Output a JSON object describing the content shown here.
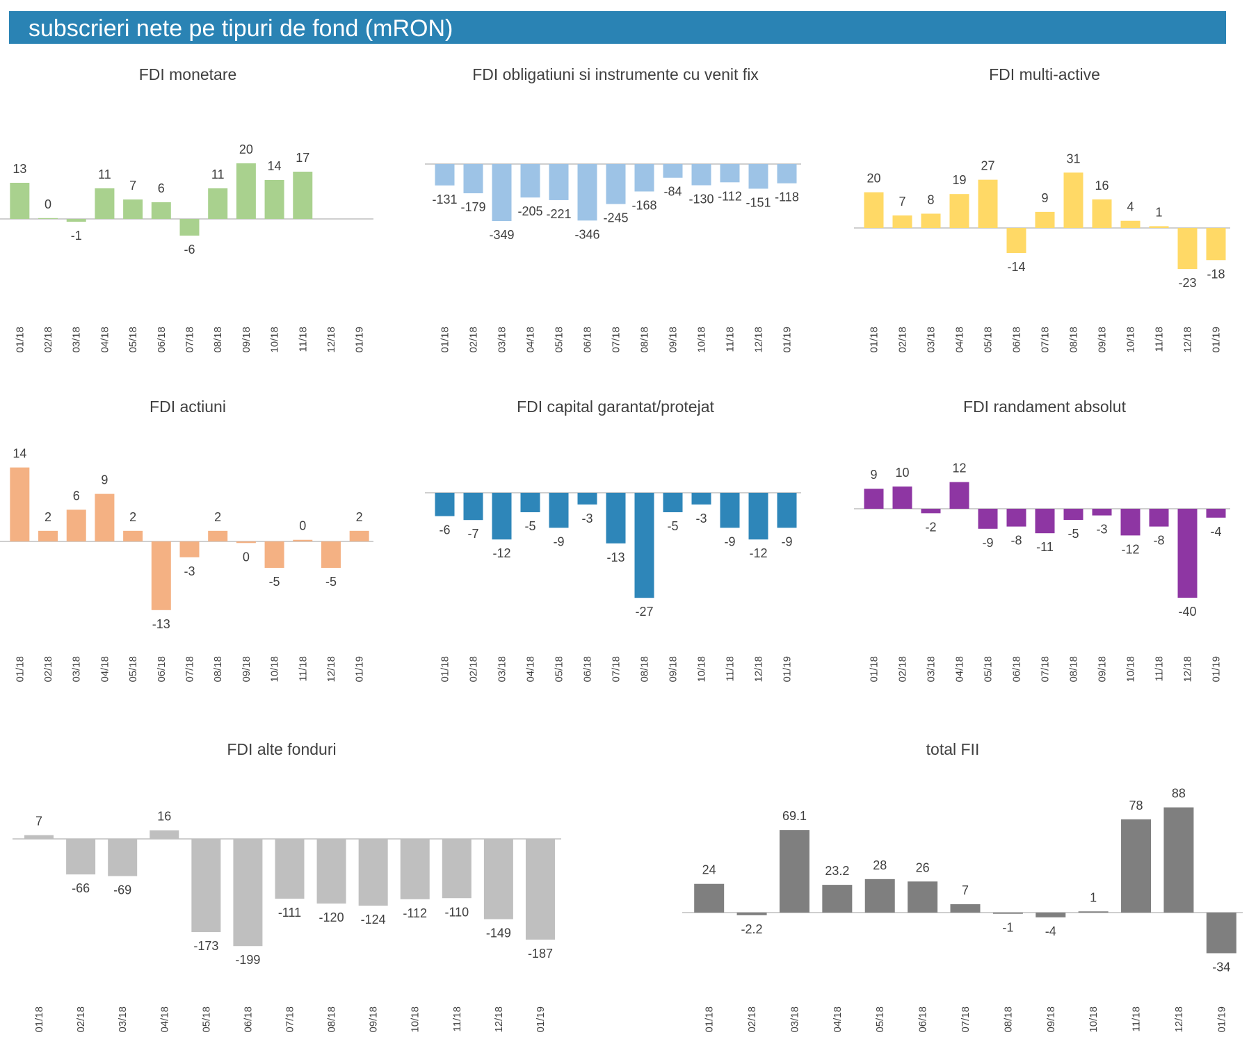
{
  "header": {
    "title": "subscrieri nete pe tipuri de fond (mRON)",
    "color": "#2a83b4"
  },
  "chart_data": [
    {
      "id": "monetare",
      "type": "bar",
      "title": "FDI monetare",
      "color": "#a9d18e",
      "categories": [
        "01/18",
        "02/18",
        "03/18",
        "04/18",
        "05/18",
        "06/18",
        "07/18",
        "08/18",
        "09/18",
        "10/18",
        "11/18",
        "12/18",
        "01/19"
      ],
      "values": [
        13,
        0.3,
        -1,
        11,
        7,
        6,
        -6,
        11,
        20,
        14,
        17,
        null,
        null
      ],
      "labels": [
        "13",
        "0",
        "-1",
        "11",
        "7",
        "6",
        "-6",
        "11",
        "20",
        "14",
        "17",
        "",
        ""
      ]
    },
    {
      "id": "obligatiuni",
      "type": "bar",
      "title": "FDI obligatiuni si instrumente cu venit fix",
      "color": "#9dc3e6",
      "categories": [
        "01/18",
        "02/18",
        "03/18",
        "04/18",
        "05/18",
        "06/18",
        "07/18",
        "08/18",
        "09/18",
        "10/18",
        "11/18",
        "12/18",
        "01/19"
      ],
      "values": [
        -131,
        -179,
        -349,
        -205,
        -221,
        -346,
        -245,
        -168,
        -84,
        -130,
        -112,
        -151,
        -118
      ],
      "labels": [
        "-131",
        "-179",
        "-349",
        "-205",
        "-221",
        "-346",
        "-245",
        "-168",
        "-84",
        "-130",
        "-112",
        "-151",
        "-118"
      ]
    },
    {
      "id": "multiactive",
      "type": "bar",
      "title": "FDI multi-active",
      "color": "#ffd966",
      "categories": [
        "01/18",
        "02/18",
        "03/18",
        "04/18",
        "05/18",
        "06/18",
        "07/18",
        "08/18",
        "09/18",
        "10/18",
        "11/18",
        "12/18",
        "01/19"
      ],
      "values": [
        20,
        7,
        8,
        19,
        27,
        -14,
        9,
        31,
        16,
        4,
        1,
        -23,
        -18
      ],
      "labels": [
        "20",
        "7",
        "8",
        "19",
        "27",
        "-14",
        "9",
        "31",
        "16",
        "4",
        "1",
        "-23",
        "-18"
      ]
    },
    {
      "id": "actiuni",
      "type": "bar",
      "title": "FDI actiuni",
      "color": "#f4b183",
      "categories": [
        "01/18",
        "02/18",
        "03/18",
        "04/18",
        "05/18",
        "06/18",
        "07/18",
        "08/18",
        "09/18",
        "10/18",
        "11/18",
        "12/18",
        "01/19"
      ],
      "values": [
        14,
        2,
        6,
        9,
        2,
        -13,
        -3,
        2,
        -0.3,
        -5,
        0.3,
        -5,
        2
      ],
      "labels": [
        "14",
        "2",
        "6",
        "9",
        "2",
        "-13",
        "-3",
        "2",
        "0",
        "-5",
        "0",
        "-5",
        "2"
      ]
    },
    {
      "id": "capital",
      "type": "bar",
      "title": "FDI capital garantat/protejat",
      "color": "#2e86b9",
      "categories": [
        "01/18",
        "02/18",
        "03/18",
        "04/18",
        "05/18",
        "06/18",
        "07/18",
        "08/18",
        "09/18",
        "10/18",
        "11/18",
        "12/18",
        "01/19"
      ],
      "values": [
        -6,
        -7,
        -12,
        -5,
        -9,
        -3,
        -13,
        -27,
        -5,
        -3,
        -9,
        -12,
        -9
      ],
      "labels": [
        "-6",
        "-7",
        "-12",
        "-5",
        "-9",
        "-3",
        "-13",
        "-27",
        "-5",
        "-3",
        "-9",
        "-12",
        "-9"
      ]
    },
    {
      "id": "randament",
      "type": "bar",
      "title": "FDI randament absolut",
      "color": "#8e36a3",
      "categories": [
        "01/18",
        "02/18",
        "03/18",
        "04/18",
        "05/18",
        "06/18",
        "07/18",
        "08/18",
        "09/18",
        "10/18",
        "11/18",
        "12/18",
        "01/19"
      ],
      "values": [
        9,
        10,
        -2,
        12,
        -9,
        -8,
        -11,
        -5,
        -3,
        -12,
        -8,
        -40,
        -4
      ],
      "labels": [
        "9",
        "10",
        "-2",
        "12",
        "-9",
        "-8",
        "-11",
        "-5",
        "-3",
        "-12",
        "-8",
        "-40",
        "-4"
      ]
    },
    {
      "id": "alte",
      "type": "bar",
      "title": "FDI alte fonduri",
      "color": "#bfbfbf",
      "categories": [
        "01/18",
        "02/18",
        "03/18",
        "04/18",
        "05/18",
        "06/18",
        "07/18",
        "08/18",
        "09/18",
        "10/18",
        "11/18",
        "12/18",
        "01/19"
      ],
      "values": [
        7,
        -66,
        -69,
        16,
        -173,
        -199,
        -111,
        -120,
        -124,
        -112,
        -110,
        -149,
        -187
      ],
      "labels": [
        "7",
        "-66",
        "-69",
        "16",
        "-173",
        "-199",
        "-111",
        "-120",
        "-124",
        "-112",
        "-110",
        "-149",
        "-187"
      ]
    },
    {
      "id": "total",
      "type": "bar",
      "title": "total FII",
      "color": "#7f7f7f",
      "categories": [
        "01/18",
        "02/18",
        "03/18",
        "04/18",
        "05/18",
        "06/18",
        "07/18",
        "08/18",
        "09/18",
        "10/18",
        "11/18",
        "12/18",
        "01/19"
      ],
      "values": [
        24,
        -2.2,
        69.1,
        23.2,
        28,
        26,
        7,
        -1,
        -4,
        1,
        78,
        88,
        -34
      ],
      "labels": [
        "24",
        "-2.2",
        "69.1",
        "23.2",
        "28",
        "26",
        "7",
        "-1",
        "-4",
        "1",
        "78",
        "88",
        "-34"
      ]
    }
  ]
}
